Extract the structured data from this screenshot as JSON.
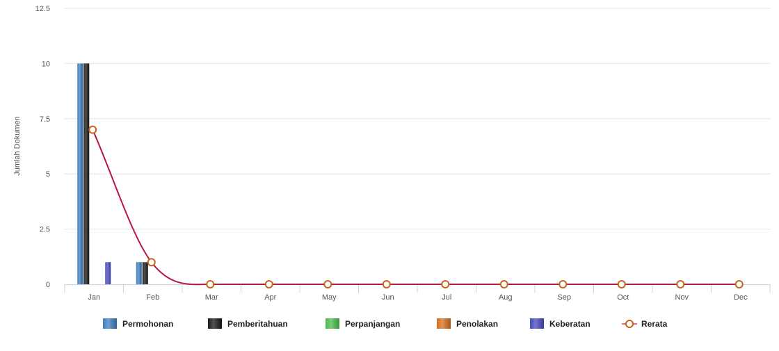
{
  "chart_data": {
    "type": "bar",
    "title": "",
    "xlabel": "",
    "ylabel": "Jumlah Dokumen",
    "ylim": [
      0,
      12.5
    ],
    "yticks": [
      "0",
      "2.5",
      "5",
      "7.5",
      "10",
      "12.5"
    ],
    "grid": true,
    "legend_position": "bottom",
    "categories": [
      "Jan",
      "Feb",
      "Mar",
      "Apr",
      "May",
      "Jun",
      "Jul",
      "Aug",
      "Sep",
      "Oct",
      "Nov",
      "Dec"
    ],
    "series": [
      {
        "name": "Permohonan",
        "type": "bar",
        "color": "#3e7fc1",
        "values": [
          10,
          1,
          0,
          0,
          0,
          0,
          0,
          0,
          0,
          0,
          0,
          0
        ]
      },
      {
        "name": "Pemberitahuan",
        "type": "bar",
        "color": "#1a1a1a",
        "values": [
          10,
          1,
          0,
          0,
          0,
          0,
          0,
          0,
          0,
          0,
          0,
          0
        ]
      },
      {
        "name": "Perpanjangan",
        "type": "bar",
        "color": "#4cbb4c",
        "values": [
          0,
          0,
          0,
          0,
          0,
          0,
          0,
          0,
          0,
          0,
          0,
          0
        ]
      },
      {
        "name": "Penolakan",
        "type": "bar",
        "color": "#d46e20",
        "values": [
          0,
          0,
          0,
          0,
          0,
          0,
          0,
          0,
          0,
          0,
          0,
          0
        ]
      },
      {
        "name": "Keberatan",
        "type": "bar",
        "color": "#4a4ac0",
        "values": [
          1,
          0,
          0,
          0,
          0,
          0,
          0,
          0,
          0,
          0,
          0,
          0
        ]
      },
      {
        "name": "Rerata",
        "type": "spline",
        "color": "#b5173f",
        "marker_color": "#c8641a",
        "values": [
          7,
          1,
          0,
          0,
          0,
          0,
          0,
          0,
          0,
          0,
          0,
          0
        ]
      }
    ]
  }
}
